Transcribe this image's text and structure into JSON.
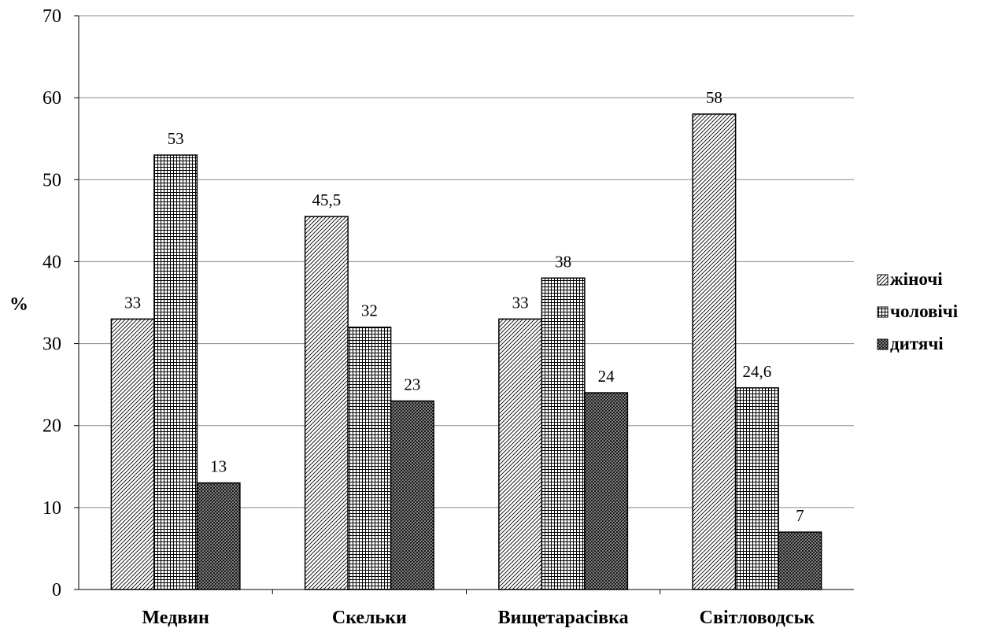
{
  "chart_data": {
    "type": "bar",
    "categories": [
      "Медвин",
      "Скельки",
      "Вищетарасівка",
      "Світловодськ"
    ],
    "series": [
      {
        "name": "жіночі",
        "values": [
          33,
          45.5,
          33,
          58
        ],
        "labels": [
          "33",
          "45,5",
          "33",
          "58"
        ],
        "pattern": "diagonal-hatch"
      },
      {
        "name": "чоловічі",
        "values": [
          53,
          32,
          38,
          24.6
        ],
        "labels": [
          "53",
          "32",
          "38",
          "24,6"
        ],
        "pattern": "grid-hatch"
      },
      {
        "name": "дитячі",
        "values": [
          13,
          23,
          24,
          7
        ],
        "labels": [
          "13",
          "23",
          "24",
          "7"
        ],
        "pattern": "dense-crosshatch"
      }
    ],
    "title": "",
    "xlabel": "",
    "ylabel": "%",
    "ylim": [
      0,
      70
    ],
    "yticks": [
      0,
      10,
      20,
      30,
      40,
      50,
      60,
      70
    ],
    "grid": true,
    "legend_position": "right",
    "colors": {
      "bar_outline": "#000000",
      "grid": "#888888",
      "background": "#ffffff"
    }
  }
}
